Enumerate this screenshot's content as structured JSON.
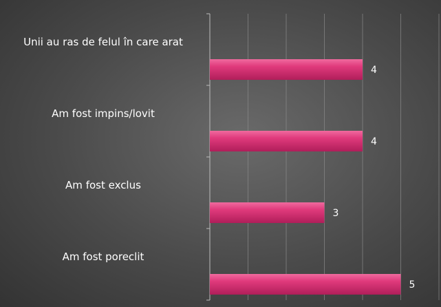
{
  "chart_data": {
    "type": "bar",
    "orientation": "horizontal",
    "categories": [
      "Unii au ras de felul în care arat",
      "Am fost impins/lovit",
      "Am fost exclus",
      "Am fost poreclit"
    ],
    "values": [
      4,
      4,
      3,
      5
    ],
    "color": "#e03a7c",
    "xlim": [
      0,
      6
    ],
    "xticks": [
      0,
      1,
      2,
      3,
      4,
      5,
      6
    ],
    "grid": true
  }
}
